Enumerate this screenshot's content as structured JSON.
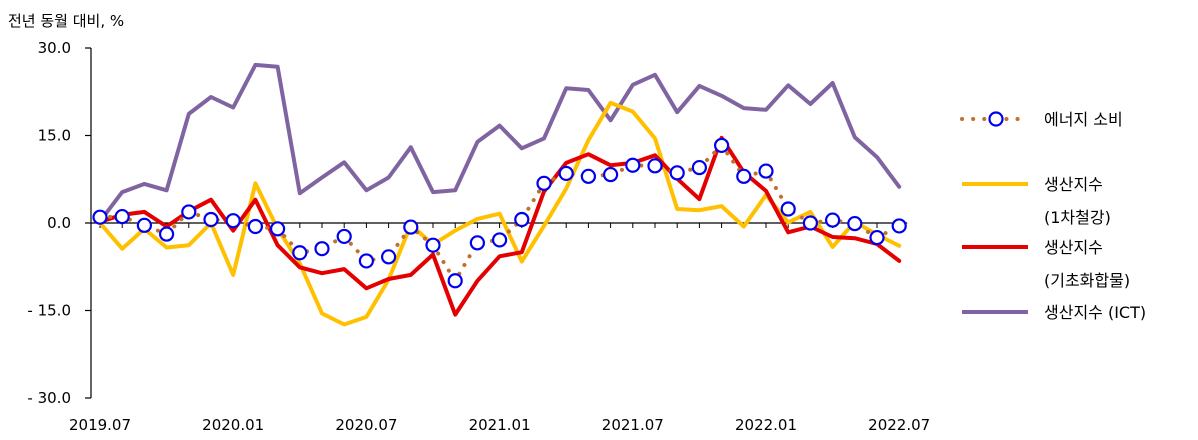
{
  "chart_data": {
    "type": "line",
    "ylabel": "전년 동월 대비, %",
    "ylim": [
      -30,
      30
    ],
    "yticks": [
      "30.0",
      "15.0",
      "0.0",
      "- 15.0",
      "- 30.0"
    ],
    "ytick_values": [
      30,
      15,
      0,
      -15,
      -30
    ],
    "xtick_labels": [
      "2019.07",
      "2020.01",
      "2020.07",
      "2021.01",
      "2021.07",
      "2022.01",
      "2022.07"
    ],
    "xtick_indices": [
      0,
      6,
      12,
      18,
      24,
      30,
      36
    ],
    "x": [
      "2019.07",
      "2019.08",
      "2019.09",
      "2019.10",
      "2019.11",
      "2019.12",
      "2020.01",
      "2020.02",
      "2020.03",
      "2020.04",
      "2020.05",
      "2020.06",
      "2020.07",
      "2020.08",
      "2020.09",
      "2020.10",
      "2020.11",
      "2020.12",
      "2021.01",
      "2021.02",
      "2021.03",
      "2021.04",
      "2021.05",
      "2021.06",
      "2021.07",
      "2021.08",
      "2021.09",
      "2021.10",
      "2021.11",
      "2021.12",
      "2022.01",
      "2022.02",
      "2022.03",
      "2022.04",
      "2022.05",
      "2022.06",
      "2022.07"
    ],
    "legend_position": "right",
    "series": [
      {
        "name": "생산지수 (ICT)",
        "style": "line",
        "color": "#8064A2",
        "values": [
          0.3,
          5.3,
          6.7,
          5.6,
          18.7,
          21.6,
          19.8,
          27.1,
          26.8,
          5.1,
          7.8,
          10.4,
          5.6,
          7.8,
          13.0,
          5.3,
          5.6,
          13.9,
          16.7,
          12.8,
          14.5,
          23.1,
          22.8,
          17.6,
          23.7,
          25.4,
          19.0,
          23.5,
          21.8,
          19.7,
          19.4,
          23.6,
          20.4,
          24.0,
          14.7,
          11.3,
          6.2
        ]
      },
      {
        "name": "생산지수",
        "name_line2": "(1차철강)",
        "style": "line",
        "color": "#FFC000",
        "values": [
          0.0,
          -4.4,
          -1.0,
          -4.2,
          -3.8,
          0.0,
          -8.9,
          6.8,
          -1.0,
          -6.9,
          -15.5,
          -17.4,
          -16.1,
          -9.7,
          -0.3,
          -3.7,
          -1.3,
          0.7,
          1.6,
          -6.6,
          -0.5,
          5.9,
          14.2,
          20.6,
          19.1,
          14.5,
          2.4,
          2.2,
          2.9,
          -0.6,
          4.8,
          0.1,
          1.9,
          -4.1,
          0.2,
          -2.0,
          -3.9
        ]
      },
      {
        "name": "생산지수",
        "name_line2": "(기초화합물)",
        "style": "line",
        "color": "#E40000",
        "values": [
          0.2,
          1.4,
          1.9,
          -0.6,
          2.0,
          4.0,
          -1.3,
          4.0,
          -3.8,
          -7.6,
          -8.6,
          -7.9,
          -11.2,
          -9.6,
          -8.9,
          -5.4,
          -15.7,
          -9.9,
          -5.7,
          -5.0,
          5.4,
          10.3,
          11.8,
          9.9,
          10.3,
          11.6,
          7.6,
          4.1,
          14.6,
          8.7,
          5.5,
          -1.6,
          -0.6,
          -2.4,
          -2.6,
          -3.6,
          -6.5
        ]
      },
      {
        "name": "에너지 소비",
        "style": "dotted-markers",
        "color": "#C0712F",
        "marker_edge": "#0000EE",
        "values": [
          1.0,
          1.1,
          -0.4,
          -1.9,
          1.9,
          0.6,
          0.4,
          -0.6,
          -1.0,
          -5.1,
          -4.4,
          -2.3,
          -6.5,
          -5.8,
          -0.7,
          -3.8,
          -9.9,
          -3.4,
          -2.9,
          0.6,
          6.8,
          8.5,
          8.0,
          8.3,
          9.9,
          9.8,
          8.6,
          9.5,
          13.3,
          8.0,
          8.9,
          2.4,
          0.0,
          0.5,
          -0.1,
          -2.5,
          -0.5
        ]
      }
    ],
    "legend": {
      "energy": "에너지 소비",
      "steel_line1": "생산지수",
      "steel_line2": "(1차철강)",
      "chem_line1": "생산지수",
      "chem_line2": "(기초화합물)",
      "ict": "생산지수 (ICT)"
    }
  }
}
